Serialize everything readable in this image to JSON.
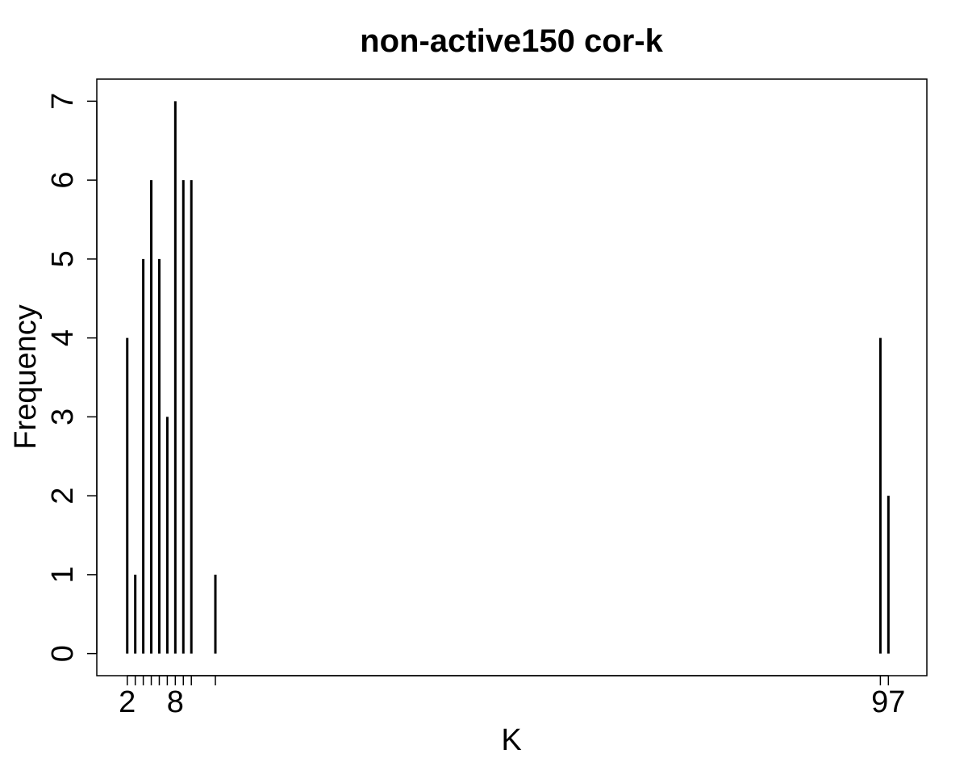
{
  "chart_data": {
    "type": "bar",
    "title": "non-active150 cor-k",
    "xlabel": "K",
    "ylabel": "Frequency",
    "x": [
      2,
      3,
      4,
      5,
      6,
      7,
      8,
      9,
      10,
      13,
      96,
      97
    ],
    "values": [
      4,
      1,
      5,
      6,
      5,
      3,
      7,
      6,
      6,
      1,
      4,
      2
    ],
    "x_tick_positions": [
      2,
      3,
      4,
      5,
      6,
      7,
      8,
      9,
      10,
      13,
      96,
      97
    ],
    "x_tick_labels": [
      "2",
      "",
      "",
      "",
      "",
      "",
      "8",
      "",
      "",
      "",
      "",
      "97"
    ],
    "y_ticks": [
      0,
      1,
      2,
      3,
      4,
      5,
      6,
      7
    ],
    "y_tick_labels": [
      "0",
      "1",
      "2",
      "3",
      "4",
      "5",
      "6",
      "7"
    ],
    "xlim": [
      -1.8,
      101.8
    ],
    "ylim": [
      -0.28,
      7.28
    ],
    "grid": false,
    "legend": "none",
    "bar_color": "#000000"
  }
}
